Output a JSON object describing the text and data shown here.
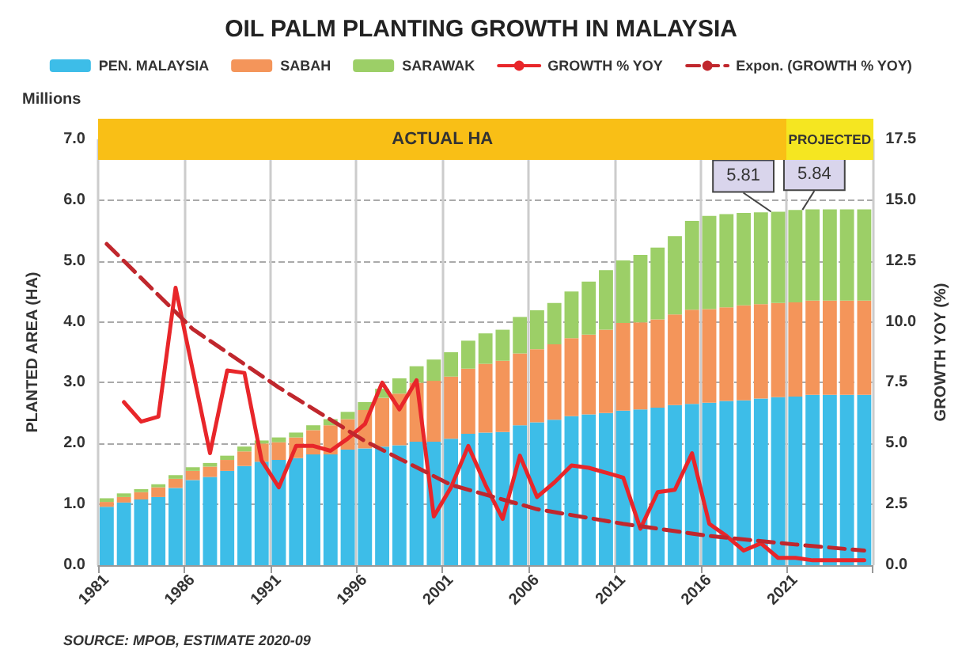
{
  "chart_data": {
    "type": "bar",
    "title": "OIL PALM PLANTING GROWTH IN MALAYSIA",
    "ylabel": "PLANTED AREA (HA)",
    "y2label": "GROWTH YOY (%)",
    "categories": [
      "1981",
      null,
      null,
      null,
      null,
      "1986",
      null,
      null,
      null,
      null,
      "1991",
      null,
      null,
      null,
      null,
      "1996",
      null,
      null,
      null,
      null,
      "2001",
      null,
      null,
      null,
      null,
      "2006",
      null,
      null,
      null,
      null,
      "2011",
      null,
      null,
      null,
      null,
      "2016",
      null,
      null,
      null,
      null,
      "2021",
      null,
      null,
      null,
      null
    ],
    "stacked": true,
    "series": [
      {
        "name": "PEN. MALAYSIA",
        "color": "#3dbde8",
        "values": [
          0.96,
          1.03,
          1.08,
          1.12,
          1.27,
          1.4,
          1.45,
          1.55,
          1.63,
          1.7,
          1.73,
          1.76,
          1.82,
          1.82,
          1.9,
          1.92,
          1.95,
          1.97,
          2.03,
          2.03,
          2.08,
          2.16,
          2.18,
          2.19,
          2.3,
          2.35,
          2.39,
          2.45,
          2.48,
          2.5,
          2.54,
          2.56,
          2.59,
          2.63,
          2.65,
          2.67,
          2.7,
          2.71,
          2.74,
          2.76,
          2.77,
          2.8,
          2.8,
          2.8,
          2.8
        ]
      },
      {
        "name": "SABAH",
        "color": "#f4955a",
        "values": [
          0.08,
          0.09,
          0.12,
          0.16,
          0.15,
          0.15,
          0.17,
          0.18,
          0.24,
          0.3,
          0.29,
          0.34,
          0.4,
          0.48,
          0.5,
          0.63,
          0.8,
          0.85,
          0.97,
          1.0,
          1.02,
          1.07,
          1.13,
          1.17,
          1.18,
          1.2,
          1.24,
          1.28,
          1.31,
          1.37,
          1.44,
          1.43,
          1.45,
          1.49,
          1.55,
          1.54,
          1.54,
          1.56,
          1.55,
          1.55,
          1.55,
          1.55,
          1.55,
          1.55,
          1.55
        ]
      },
      {
        "name": "SARAWAK",
        "color": "#9ccf67",
        "values": [
          0.06,
          0.06,
          0.05,
          0.05,
          0.06,
          0.06,
          0.06,
          0.07,
          0.08,
          0.05,
          0.08,
          0.08,
          0.08,
          0.1,
          0.12,
          0.13,
          0.15,
          0.25,
          0.27,
          0.35,
          0.4,
          0.46,
          0.5,
          0.51,
          0.6,
          0.64,
          0.68,
          0.77,
          0.87,
          0.98,
          1.03,
          1.11,
          1.18,
          1.29,
          1.46,
          1.53,
          1.53,
          1.52,
          1.51,
          1.5,
          1.52,
          1.5,
          1.5,
          1.5,
          1.5
        ]
      },
      {
        "name": "GROWTH % YOY",
        "type": "line",
        "axis": "y2",
        "color": "#e8262a",
        "line_style": "solid",
        "values": [
          null,
          6.7,
          5.9,
          6.1,
          11.4,
          8.0,
          4.6,
          8.0,
          7.9,
          4.3,
          3.2,
          4.9,
          4.9,
          4.7,
          5.2,
          5.8,
          7.5,
          6.4,
          7.6,
          2.0,
          3.2,
          4.9,
          3.3,
          1.9,
          4.5,
          2.8,
          3.4,
          4.1,
          4.0,
          3.8,
          3.6,
          1.5,
          3.0,
          3.1,
          4.6,
          1.7,
          1.2,
          0.6,
          0.9,
          0.3,
          0.3,
          0.2,
          0.2,
          0.2,
          0.2
        ]
      },
      {
        "name": "Expon. (GROWTH % YOY)",
        "type": "line",
        "axis": "y2",
        "color": "#c0272d",
        "line_style": "dashed",
        "values": [
          13.2,
          null,
          null,
          null,
          null,
          9.7,
          null,
          null,
          null,
          null,
          7.3,
          null,
          null,
          null,
          null,
          5.1,
          null,
          null,
          null,
          null,
          3.3,
          null,
          null,
          null,
          null,
          2.3,
          null,
          null,
          null,
          null,
          1.7,
          null,
          null,
          null,
          null,
          1.2,
          null,
          null,
          null,
          null,
          0.85,
          null,
          null,
          null,
          0.6
        ]
      }
    ],
    "totals": [
      null,
      null,
      null,
      null,
      null,
      null,
      null,
      null,
      null,
      null,
      null,
      null,
      null,
      null,
      null,
      null,
      null,
      null,
      null,
      null,
      null,
      null,
      null,
      null,
      null,
      null,
      null,
      null,
      null,
      null,
      null,
      null,
      null,
      null,
      null,
      null,
      null,
      null,
      null,
      "5.81",
      "5.84",
      null,
      null,
      null,
      null
    ],
    "ylim": [
      0,
      7
    ],
    "yticks": [
      {
        "value": 0,
        "label": "0.0"
      },
      {
        "value": 1,
        "label": "1.0"
      },
      {
        "value": 2,
        "label": "2.0"
      },
      {
        "value": 3,
        "label": "3.0"
      },
      {
        "value": 4,
        "label": "4.0"
      },
      {
        "value": 5,
        "label": "5.0"
      },
      {
        "value": 6,
        "label": "6.0"
      },
      {
        "value": 7,
        "label": "7.0"
      }
    ],
    "y2lim": [
      0,
      17.5
    ],
    "y2ticks": [
      {
        "value": 0,
        "label": "0.0"
      },
      2.5,
      {
        "value": 5,
        "label": "5.0"
      },
      7.5,
      {
        "value": 10,
        "label": "10.0"
      },
      12.5,
      {
        "value": 15,
        "label": "15.0"
      },
      17.5
    ],
    "annotations": [
      "Millions",
      "SOURCE: MPOB, ESTIMATE 2020-09",
      "ACTUAL HA",
      "PROJECTED"
    ],
    "grid": true,
    "legend": "top",
    "marker": "none"
  }
}
